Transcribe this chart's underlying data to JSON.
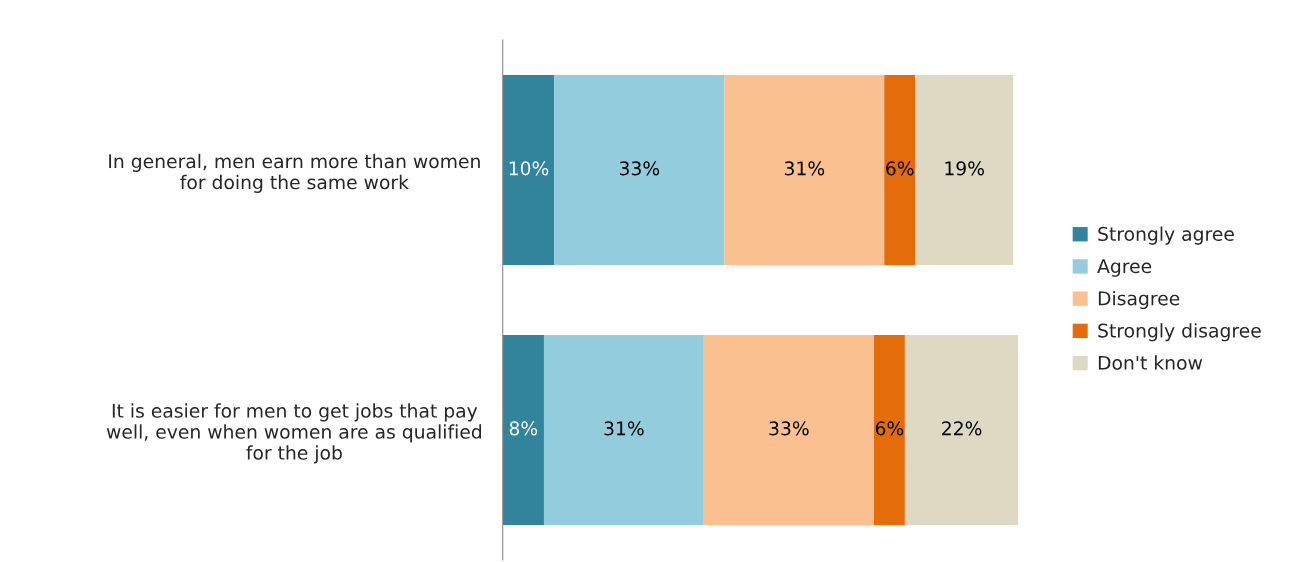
{
  "chart_data": {
    "type": "bar",
    "orientation": "horizontal",
    "stacked": true,
    "categories": [
      "In general, men earn more than women\nfor doing the same work",
      "It is easier for men to get jobs that pay\nwell, even when women are as qualified\nfor the job"
    ],
    "series": [
      {
        "name": "Strongly agree",
        "color": "#31849b",
        "values": [
          10,
          8
        ],
        "value_labels": [
          "10%",
          "8%"
        ]
      },
      {
        "name": "Agree",
        "color": "#93cddd",
        "values": [
          33,
          31
        ],
        "value_labels": [
          "33%",
          "31%"
        ]
      },
      {
        "name": "Disagree",
        "color": "#fac090",
        "values": [
          31,
          33
        ],
        "value_labels": [
          "31%",
          "33%"
        ]
      },
      {
        "name": "Strongly disagree",
        "color": "#e46c0a",
        "values": [
          6,
          6
        ],
        "value_labels": [
          "6%",
          "6%"
        ]
      },
      {
        "name": "Don't know",
        "color": "#ddd9c3",
        "values": [
          19,
          22
        ],
        "value_labels": [
          "19%",
          "22%"
        ]
      }
    ],
    "legend": "right",
    "tick_labels": "y"
  }
}
